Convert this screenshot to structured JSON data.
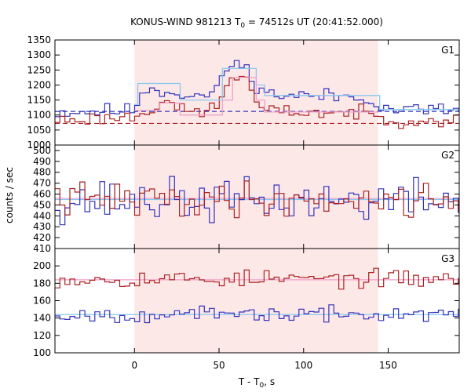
{
  "chart_data": {
    "type": "line",
    "title": "KONUS-WIND 981213 T0 = 74512s UT (20:41:52.000)",
    "title_parts": {
      "pre": "KONUS-WIND 981213 T",
      "sub": "0",
      "post": " = 74512s UT (20:41:52.000)"
    },
    "xlabel_parts": {
      "pre": "T - T",
      "sub": "0",
      "post": ", s"
    },
    "ylabel": "counts / sec",
    "xlim": [
      -47,
      192
    ],
    "xticks": [
      0,
      50,
      100,
      150
    ],
    "x_tick_labels": [
      "0",
      "50",
      "100",
      "150"
    ],
    "shaded_interval": [
      0,
      144
    ],
    "colors": {
      "shade": "#fde8e8",
      "blue": "#3333bb",
      "red": "#aa2222",
      "light_blue": "#88c8f0",
      "pink": "#f0a0c8"
    },
    "panels": [
      {
        "label": "G1",
        "ylim": [
          1000,
          1350
        ],
        "yticks": [
          1000,
          1050,
          1100,
          1150,
          1200,
          1250,
          1300,
          1350
        ],
        "y_tick_labels": [
          "1000",
          "1050",
          "1100",
          "1150",
          "1200",
          "1250",
          "1300",
          "1350"
        ],
        "series": [
          {
            "color": "blue",
            "bin_width": 2.944,
            "x_start": -47,
            "start": 1110,
            "levels": [
              [
                -47,
                1110
              ],
              [
                0,
                1115
              ],
              [
                5,
                1190
              ],
              [
                25,
                1175
              ],
              [
                35,
                1160
              ],
              [
                50,
                1175
              ],
              [
                52,
                1250
              ],
              [
                60,
                1270
              ],
              [
                65,
                1260
              ],
              [
                70,
                1220
              ],
              [
                78,
                1170
              ],
              [
                95,
                1165
              ],
              [
                140,
                1160
              ],
              [
                145,
                1120
              ],
              [
                192,
                1115
              ]
            ],
            "noise": 18,
            "seed": 11
          },
          {
            "color": "red",
            "bin_width": 2.944,
            "x_start": -47,
            "start": 1080,
            "levels": [
              [
                -47,
                1082
              ],
              [
                0,
                1095
              ],
              [
                10,
                1120
              ],
              [
                20,
                1160
              ],
              [
                25,
                1115
              ],
              [
                40,
                1110
              ],
              [
                50,
                1130
              ],
              [
                55,
                1210
              ],
              [
                62,
                1240
              ],
              [
                68,
                1200
              ],
              [
                72,
                1140
              ],
              [
                78,
                1112
              ],
              [
                140,
                1105
              ],
              [
                145,
                1085
              ],
              [
                192,
                1083
              ]
            ],
            "noise": 16,
            "seed": 23
          }
        ],
        "step_fits": [
          {
            "color": "light_blue",
            "x": [
              0,
              2,
              27,
              52,
              72,
              77,
              144,
              145,
              192
            ],
            "y": [
              1135,
              1205,
              1150,
              1255,
              1200,
              1165,
              1165,
              1118,
              1118
            ]
          },
          {
            "color": "pink",
            "x": [
              0,
              15,
              27,
              52,
              58,
              72,
              77,
              144,
              145
            ],
            "y": [
              1115,
              1140,
              1100,
              1150,
              1225,
              1150,
              1110,
              1110,
              1100
            ]
          }
        ],
        "baselines": [
          {
            "color": "blue",
            "y": 1112,
            "dashed": true
          },
          {
            "color": "red",
            "y": 1072,
            "dashed": true
          }
        ]
      },
      {
        "label": "G2",
        "ylim": [
          410,
          505
        ],
        "yticks": [
          410,
          420,
          430,
          440,
          450,
          460,
          470,
          480,
          490,
          500
        ],
        "y_tick_labels": [
          "410",
          "420",
          "430",
          "440",
          "450",
          "460",
          "470",
          "480",
          "490",
          "500"
        ],
        "series": [
          {
            "color": "blue",
            "bin_width": 2.944,
            "x_start": -47,
            "levels": [
              [
                -47,
                454
              ],
              [
                192,
                454
              ]
            ],
            "noise": 14,
            "seed": 37
          },
          {
            "color": "red",
            "bin_width": 2.944,
            "x_start": -47,
            "levels": [
              [
                -47,
                455
              ],
              [
                192,
                455
              ]
            ],
            "noise": 11,
            "seed": 41
          }
        ],
        "step_fits": [],
        "baselines": [
          {
            "color": "light_blue",
            "y": 455,
            "dashed": false
          },
          {
            "color": "pink",
            "y": 456,
            "dashed": false
          }
        ]
      },
      {
        "label": "G3",
        "ylim": [
          100,
          220
        ],
        "yticks": [
          100,
          120,
          140,
          160,
          180,
          200
        ],
        "y_tick_labels": [
          "100",
          "120",
          "140",
          "160",
          "180",
          "200"
        ],
        "series": [
          {
            "color": "red",
            "bin_width": 2.944,
            "x_start": -47,
            "levels": [
              [
                -47,
                185
              ],
              [
                192,
                185
              ]
            ],
            "noise": 7,
            "seed": 53
          },
          {
            "color": "blue",
            "bin_width": 2.944,
            "x_start": -47,
            "levels": [
              [
                -47,
                144
              ],
              [
                192,
                144
              ]
            ],
            "noise": 6,
            "seed": 67
          }
        ],
        "step_fits": [],
        "baselines": [
          {
            "color": "pink",
            "y": 184,
            "dashed": false
          },
          {
            "color": "light_blue",
            "y": 144,
            "dashed": false
          }
        ]
      }
    ]
  }
}
